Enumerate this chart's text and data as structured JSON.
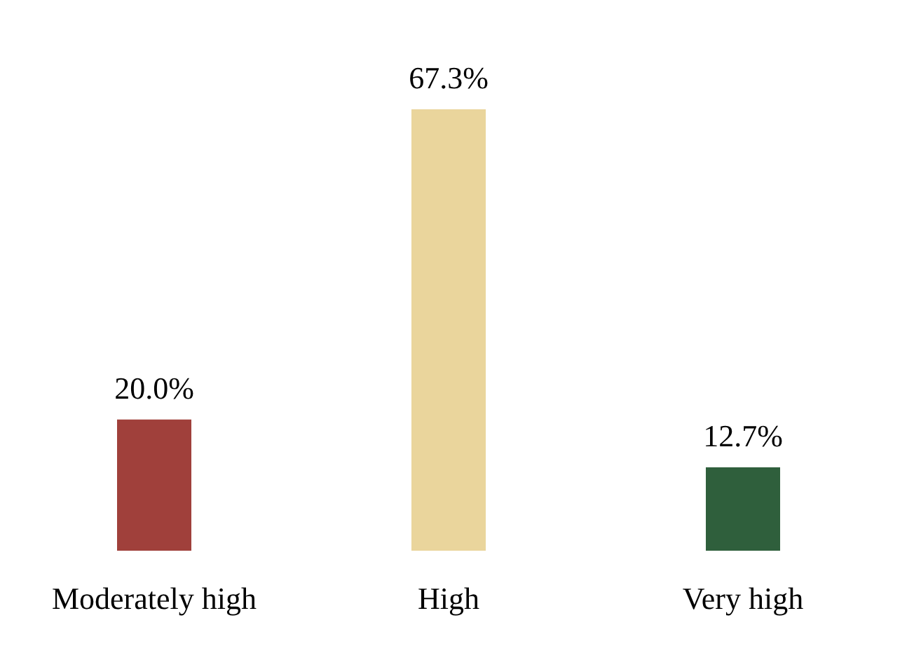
{
  "chart_data": {
    "type": "bar",
    "categories": [
      "Moderately high",
      "High",
      "Very high"
    ],
    "values": [
      20.0,
      67.3,
      12.7
    ],
    "colors": [
      "#a0403b",
      "#ead59c",
      "#2f5f3c"
    ],
    "value_labels": [
      "20.0%",
      "67.3%",
      "12.7%"
    ]
  }
}
